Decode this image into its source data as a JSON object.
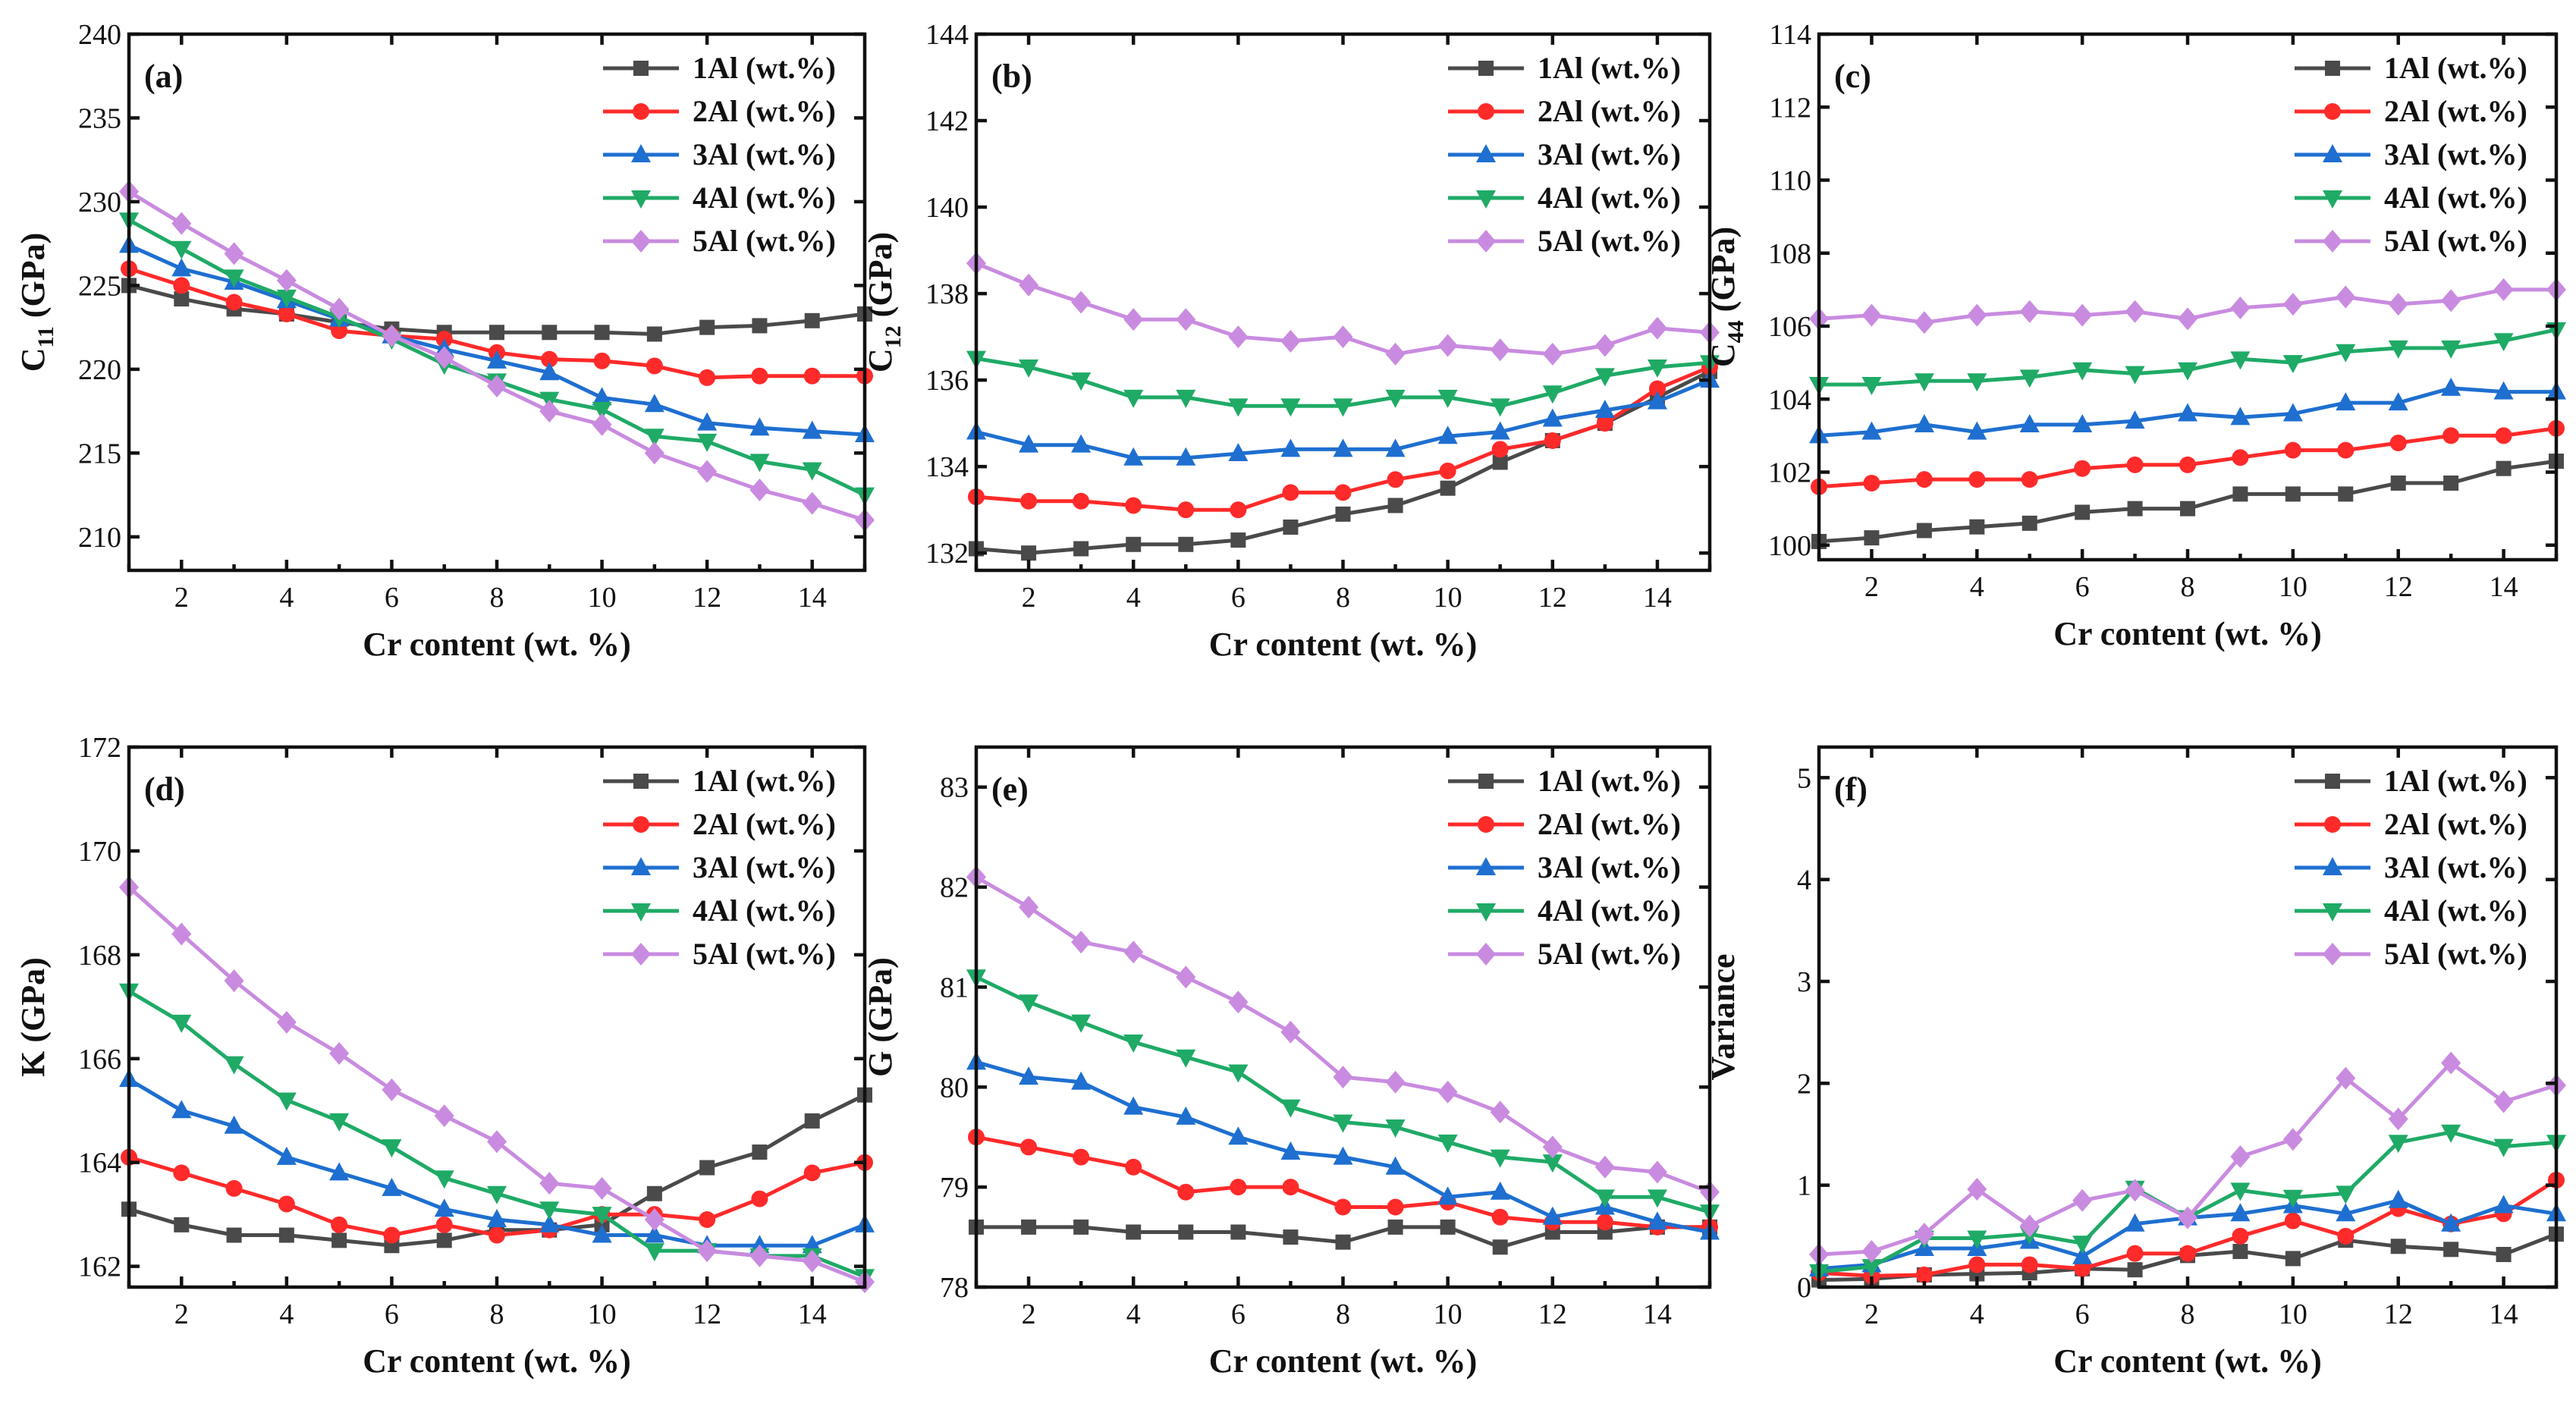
{
  "figure": {
    "legend_labels": [
      "1Al (wt.%)",
      "2Al (wt.%)",
      "3Al (wt.%)",
      "4Al (wt.%)",
      "5Al (wt.%)"
    ]
  },
  "chart_data": [
    {
      "type": "line",
      "panel": "(a)",
      "ylabel_main": "C",
      "ylabel_sub": "11",
      "ylabel_unit": " (GPa)",
      "xlabel": "Cr content (wt. %)",
      "xlim": [
        1,
        15
      ],
      "ylim": [
        208,
        240
      ],
      "xticks": [
        2,
        4,
        6,
        8,
        10,
        12,
        14
      ],
      "yticks": [
        210,
        215,
        220,
        225,
        230,
        235,
        240
      ],
      "x": [
        1,
        2,
        3,
        4,
        5,
        6,
        7,
        8,
        9,
        10,
        11,
        12,
        13,
        14,
        15
      ],
      "series": [
        {
          "name": "1Al (wt.%)",
          "color": "#4a4a4a",
          "marker": "square",
          "values": [
            225.0,
            224.2,
            223.6,
            223.3,
            222.8,
            222.4,
            222.2,
            222.2,
            222.2,
            222.2,
            222.1,
            222.5,
            222.6,
            222.9,
            223.3
          ]
        },
        {
          "name": "2Al (wt.%)",
          "color": "#ff2a2a",
          "marker": "circle",
          "values": [
            226.0,
            225.0,
            224.0,
            223.3,
            222.3,
            222.0,
            221.8,
            221.0,
            220.6,
            220.5,
            220.2,
            219.5,
            219.6,
            219.6,
            219.6
          ]
        },
        {
          "name": "3Al (wt.%)",
          "color": "#1e6fd0",
          "marker": "triangle-up",
          "values": [
            227.4,
            226.0,
            225.2,
            224.1,
            223.0,
            222.0,
            221.2,
            220.5,
            219.8,
            218.3,
            217.9,
            216.8,
            216.5,
            216.3,
            216.1
          ]
        },
        {
          "name": "4Al (wt.%)",
          "color": "#1faa66",
          "marker": "triangle-down",
          "values": [
            228.9,
            227.2,
            225.5,
            224.3,
            223.1,
            221.8,
            220.3,
            219.3,
            218.2,
            217.6,
            216.0,
            215.7,
            214.5,
            214.0,
            212.5
          ]
        },
        {
          "name": "5Al (wt.%)",
          "color": "#c98be0",
          "marker": "diamond",
          "values": [
            230.6,
            228.7,
            226.9,
            225.3,
            223.6,
            222.0,
            220.7,
            219.0,
            217.5,
            216.7,
            215.0,
            213.9,
            212.8,
            212.0,
            211.0
          ]
        }
      ]
    },
    {
      "type": "line",
      "panel": "(b)",
      "ylabel_main": "C",
      "ylabel_sub": "12",
      "ylabel_unit": " (GPa)",
      "xlabel": "Cr content (wt. %)",
      "xlim": [
        1,
        15
      ],
      "ylim": [
        131.6,
        144
      ],
      "xticks": [
        2,
        4,
        6,
        8,
        10,
        12,
        14
      ],
      "yticks": [
        132,
        134,
        136,
        138,
        140,
        142,
        144
      ],
      "x": [
        1,
        2,
        3,
        4,
        5,
        6,
        7,
        8,
        9,
        10,
        11,
        12,
        13,
        14,
        15
      ],
      "series": [
        {
          "name": "1Al (wt.%)",
          "color": "#4a4a4a",
          "marker": "square",
          "values": [
            132.1,
            132.0,
            132.1,
            132.2,
            132.2,
            132.3,
            132.6,
            132.9,
            133.1,
            133.5,
            134.1,
            134.6,
            135.0,
            135.6,
            136.2
          ]
        },
        {
          "name": "2Al (wt.%)",
          "color": "#ff2a2a",
          "marker": "circle",
          "values": [
            133.3,
            133.2,
            133.2,
            133.1,
            133.0,
            133.0,
            133.4,
            133.4,
            133.7,
            133.9,
            134.4,
            134.6,
            135.0,
            135.8,
            136.3
          ]
        },
        {
          "name": "3Al (wt.%)",
          "color": "#1e6fd0",
          "marker": "triangle-up",
          "values": [
            134.8,
            134.5,
            134.5,
            134.2,
            134.2,
            134.3,
            134.4,
            134.4,
            134.4,
            134.7,
            134.8,
            135.1,
            135.3,
            135.5,
            136.0
          ]
        },
        {
          "name": "4Al (wt.%)",
          "color": "#1faa66",
          "marker": "triangle-down",
          "values": [
            136.5,
            136.3,
            136.0,
            135.6,
            135.6,
            135.4,
            135.4,
            135.4,
            135.6,
            135.6,
            135.4,
            135.7,
            136.1,
            136.3,
            136.4
          ]
        },
        {
          "name": "5Al (wt.%)",
          "color": "#c98be0",
          "marker": "diamond",
          "values": [
            138.7,
            138.2,
            137.8,
            137.4,
            137.4,
            137.0,
            136.9,
            137.0,
            136.6,
            136.8,
            136.7,
            136.6,
            136.8,
            137.2,
            137.1
          ]
        }
      ]
    },
    {
      "type": "line",
      "panel": "(c)",
      "ylabel_main": "C",
      "ylabel_sub": "44",
      "ylabel_unit": " (GPa)",
      "xlabel": "Cr content (wt. %)",
      "xlim": [
        1,
        15
      ],
      "ylim": [
        99.6,
        114
      ],
      "xticks": [
        2,
        4,
        6,
        8,
        10,
        12,
        14
      ],
      "yticks": [
        100,
        102,
        104,
        106,
        108,
        110,
        112,
        114
      ],
      "x": [
        1,
        2,
        3,
        4,
        5,
        6,
        7,
        8,
        9,
        10,
        11,
        12,
        13,
        14,
        15
      ],
      "series": [
        {
          "name": "1Al (wt.%)",
          "color": "#4a4a4a",
          "marker": "square",
          "values": [
            100.1,
            100.2,
            100.4,
            100.5,
            100.6,
            100.9,
            101.0,
            101.0,
            101.4,
            101.4,
            101.4,
            101.7,
            101.7,
            102.1,
            102.3
          ]
        },
        {
          "name": "2Al (wt.%)",
          "color": "#ff2a2a",
          "marker": "circle",
          "values": [
            101.6,
            101.7,
            101.8,
            101.8,
            101.8,
            102.1,
            102.2,
            102.2,
            102.4,
            102.6,
            102.6,
            102.8,
            103.0,
            103.0,
            103.2
          ]
        },
        {
          "name": "3Al (wt.%)",
          "color": "#1e6fd0",
          "marker": "triangle-up",
          "values": [
            103.0,
            103.1,
            103.3,
            103.1,
            103.3,
            103.3,
            103.4,
            103.6,
            103.5,
            103.6,
            103.9,
            103.9,
            104.3,
            104.2,
            104.2
          ]
        },
        {
          "name": "4Al (wt.%)",
          "color": "#1faa66",
          "marker": "triangle-down",
          "values": [
            104.4,
            104.4,
            104.5,
            104.5,
            104.6,
            104.8,
            104.7,
            104.8,
            105.1,
            105.0,
            105.3,
            105.4,
            105.4,
            105.6,
            105.9
          ]
        },
        {
          "name": "5Al (wt.%)",
          "color": "#c98be0",
          "marker": "diamond",
          "values": [
            106.2,
            106.3,
            106.1,
            106.3,
            106.4,
            106.3,
            106.4,
            106.2,
            106.5,
            106.6,
            106.8,
            106.6,
            106.7,
            107.0,
            107.0
          ]
        }
      ]
    },
    {
      "type": "line",
      "panel": "(d)",
      "ylabel_main": "K (GPa)",
      "ylabel_sub": "",
      "ylabel_unit": "",
      "xlabel": "Cr content (wt. %)",
      "xlim": [
        1,
        15
      ],
      "ylim": [
        161.6,
        172
      ],
      "xticks": [
        2,
        4,
        6,
        8,
        10,
        12,
        14
      ],
      "yticks": [
        162,
        164,
        166,
        168,
        170,
        172
      ],
      "x": [
        1,
        2,
        3,
        4,
        5,
        6,
        7,
        8,
        9,
        10,
        11,
        12,
        13,
        14,
        15
      ],
      "series": [
        {
          "name": "1Al (wt.%)",
          "color": "#4a4a4a",
          "marker": "square",
          "values": [
            163.1,
            162.8,
            162.6,
            162.6,
            162.5,
            162.4,
            162.5,
            162.7,
            162.7,
            162.8,
            163.4,
            163.9,
            164.2,
            164.8,
            165.3
          ]
        },
        {
          "name": "2Al (wt.%)",
          "color": "#ff2a2a",
          "marker": "circle",
          "values": [
            164.1,
            163.8,
            163.5,
            163.2,
            162.8,
            162.6,
            162.8,
            162.6,
            162.7,
            163.0,
            163.0,
            162.9,
            163.3,
            163.8,
            164.0
          ]
        },
        {
          "name": "3Al (wt.%)",
          "color": "#1e6fd0",
          "marker": "triangle-up",
          "values": [
            165.6,
            165.0,
            164.7,
            164.1,
            163.8,
            163.5,
            163.1,
            162.9,
            162.8,
            162.6,
            162.6,
            162.4,
            162.4,
            162.4,
            162.8
          ]
        },
        {
          "name": "4Al (wt.%)",
          "color": "#1faa66",
          "marker": "triangle-down",
          "values": [
            167.3,
            166.7,
            165.9,
            165.2,
            164.8,
            164.3,
            163.7,
            163.4,
            163.1,
            163.0,
            162.3,
            162.3,
            162.2,
            162.2,
            161.8
          ]
        },
        {
          "name": "5Al (wt.%)",
          "color": "#c98be0",
          "marker": "diamond",
          "values": [
            169.3,
            168.4,
            167.5,
            166.7,
            166.1,
            165.4,
            164.9,
            164.4,
            163.6,
            163.5,
            162.9,
            162.3,
            162.2,
            162.1,
            161.7
          ]
        }
      ]
    },
    {
      "type": "line",
      "panel": "(e)",
      "ylabel_main": "G (GPa)",
      "ylabel_sub": "",
      "ylabel_unit": "",
      "xlabel": "Cr content (wt. %)",
      "xlim": [
        1,
        15
      ],
      "ylim": [
        78,
        83.4
      ],
      "xticks": [
        2,
        4,
        6,
        8,
        10,
        12,
        14
      ],
      "yticks": [
        78,
        79,
        80,
        81,
        82,
        83
      ],
      "x": [
        1,
        2,
        3,
        4,
        5,
        6,
        7,
        8,
        9,
        10,
        11,
        12,
        13,
        14,
        15
      ],
      "series": [
        {
          "name": "1Al (wt.%)",
          "color": "#4a4a4a",
          "marker": "square",
          "values": [
            78.6,
            78.6,
            78.6,
            78.55,
            78.55,
            78.55,
            78.5,
            78.45,
            78.6,
            78.6,
            78.4,
            78.55,
            78.55,
            78.6,
            78.6
          ]
        },
        {
          "name": "2Al (wt.%)",
          "color": "#ff2a2a",
          "marker": "circle",
          "values": [
            79.5,
            79.4,
            79.3,
            79.2,
            78.95,
            79.0,
            79.0,
            78.8,
            78.8,
            78.85,
            78.7,
            78.65,
            78.65,
            78.6,
            78.6
          ]
        },
        {
          "name": "3Al (wt.%)",
          "color": "#1e6fd0",
          "marker": "triangle-up",
          "values": [
            80.25,
            80.1,
            80.05,
            79.8,
            79.7,
            79.5,
            79.35,
            79.3,
            79.2,
            78.9,
            78.95,
            78.7,
            78.8,
            78.65,
            78.55
          ]
        },
        {
          "name": "4Al (wt.%)",
          "color": "#1faa66",
          "marker": "triangle-down",
          "values": [
            81.1,
            80.85,
            80.65,
            80.45,
            80.3,
            80.15,
            79.8,
            79.65,
            79.6,
            79.45,
            79.3,
            79.25,
            78.9,
            78.9,
            78.75
          ]
        },
        {
          "name": "5Al (wt.%)",
          "color": "#c98be0",
          "marker": "diamond",
          "values": [
            82.1,
            81.8,
            81.45,
            81.35,
            81.1,
            80.85,
            80.55,
            80.1,
            80.05,
            79.95,
            79.75,
            79.4,
            79.2,
            79.15,
            78.95
          ]
        }
      ]
    },
    {
      "type": "line",
      "panel": "(f)",
      "ylabel_main": "Variance",
      "ylabel_sub": "",
      "ylabel_unit": "",
      "xlabel": "Cr content (wt. %)",
      "xlim": [
        1,
        15
      ],
      "ylim": [
        0,
        5.3
      ],
      "xticks": [
        2,
        4,
        6,
        8,
        10,
        12,
        14
      ],
      "yticks": [
        0,
        1,
        2,
        3,
        4,
        5
      ],
      "x": [
        1,
        2,
        3,
        4,
        5,
        6,
        7,
        8,
        9,
        10,
        11,
        12,
        13,
        14,
        15
      ],
      "series": [
        {
          "name": "1Al (wt.%)",
          "color": "#4a4a4a",
          "marker": "square",
          "values": [
            0.07,
            0.08,
            0.12,
            0.13,
            0.14,
            0.18,
            0.17,
            0.31,
            0.35,
            0.28,
            0.46,
            0.4,
            0.37,
            0.32,
            0.52
          ]
        },
        {
          "name": "2Al (wt.%)",
          "color": "#ff2a2a",
          "marker": "circle",
          "values": [
            0.14,
            0.11,
            0.12,
            0.22,
            0.22,
            0.18,
            0.33,
            0.33,
            0.5,
            0.65,
            0.5,
            0.77,
            0.62,
            0.72,
            1.05
          ]
        },
        {
          "name": "3Al (wt.%)",
          "color": "#1e6fd0",
          "marker": "triangle-up",
          "values": [
            0.18,
            0.22,
            0.38,
            0.38,
            0.45,
            0.3,
            0.62,
            0.68,
            0.72,
            0.8,
            0.72,
            0.85,
            0.62,
            0.8,
            0.72
          ]
        },
        {
          "name": "4Al (wt.%)",
          "color": "#1faa66",
          "marker": "triangle-down",
          "values": [
            0.15,
            0.2,
            0.48,
            0.48,
            0.52,
            0.43,
            0.97,
            0.68,
            0.95,
            0.88,
            0.92,
            1.42,
            1.52,
            1.38,
            1.42
          ]
        },
        {
          "name": "5Al (wt.%)",
          "color": "#c98be0",
          "marker": "diamond",
          "values": [
            0.32,
            0.35,
            0.52,
            0.96,
            0.6,
            0.85,
            0.95,
            0.68,
            1.28,
            1.45,
            2.05,
            1.65,
            2.2,
            1.82,
            1.98
          ]
        }
      ]
    }
  ]
}
